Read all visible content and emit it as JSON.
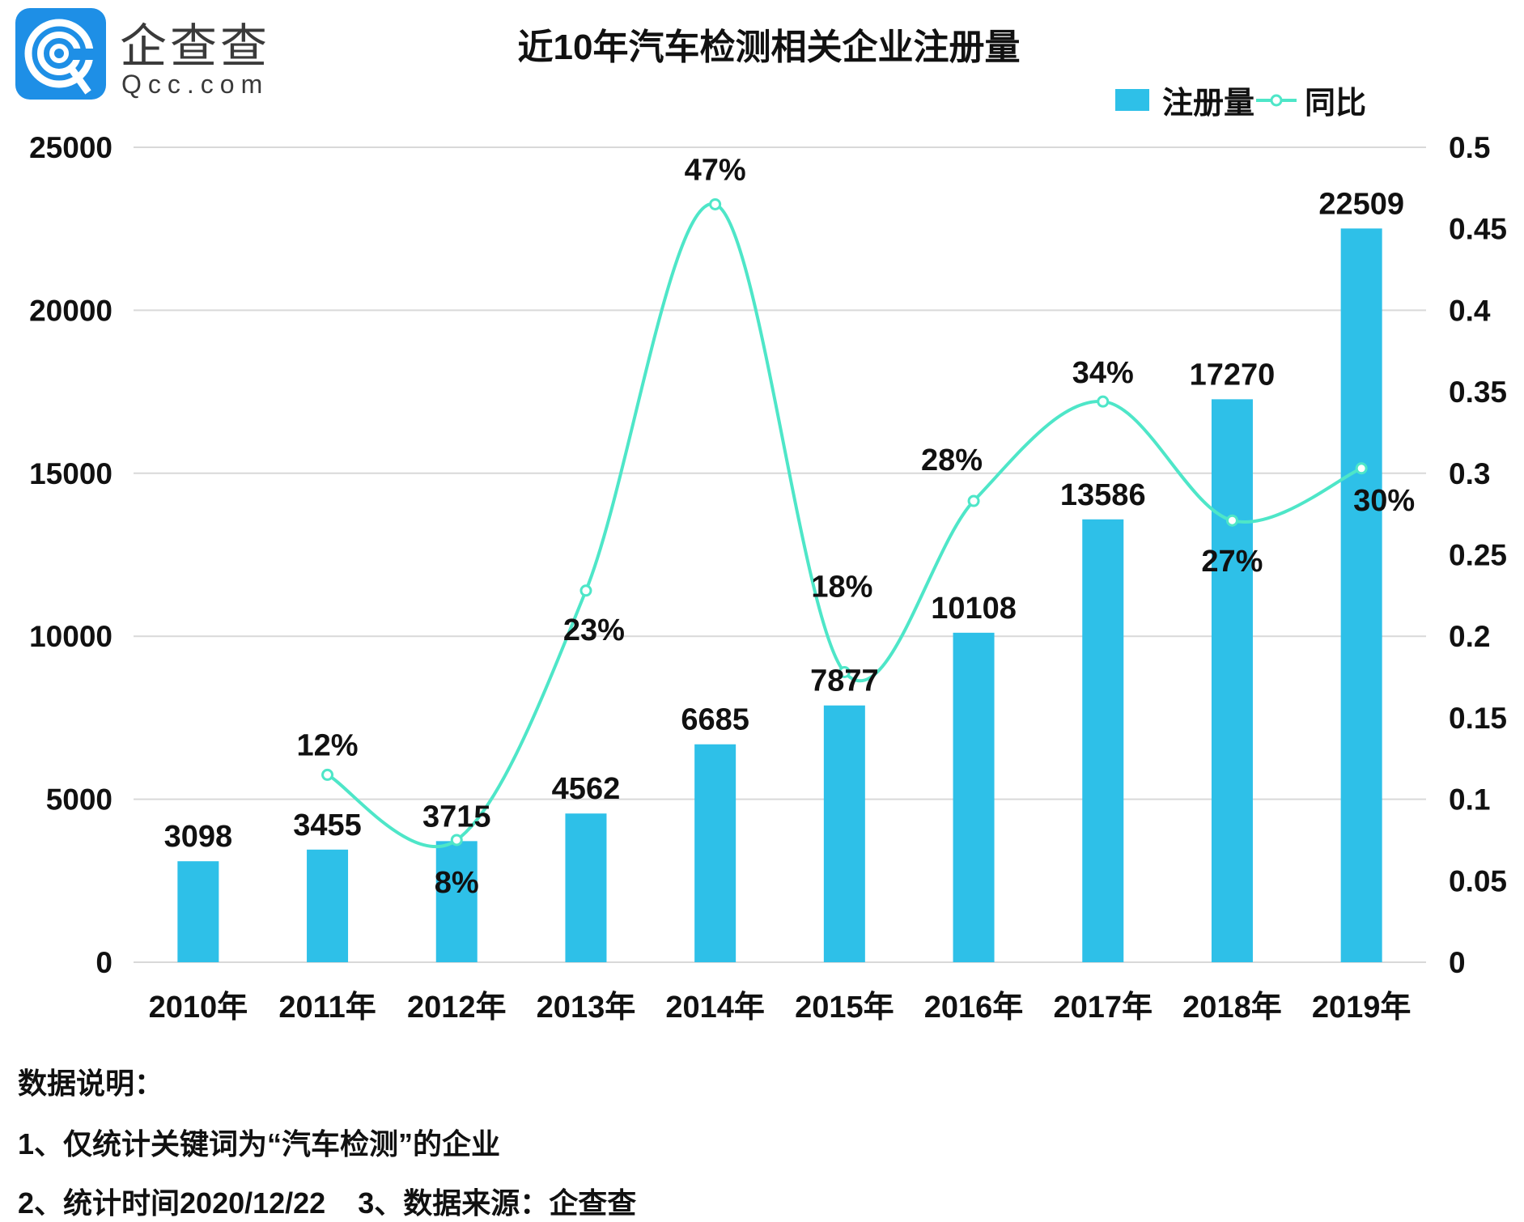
{
  "logo": {
    "name": "企查查",
    "url": "Qcc.com"
  },
  "chart_data": {
    "type": "bar+line",
    "title": "近10年汽车检测相关企业注册量",
    "categories": [
      "2010年",
      "2011年",
      "2012年",
      "2013年",
      "2014年",
      "2015年",
      "2016年",
      "2017年",
      "2018年",
      "2019年"
    ],
    "series": [
      {
        "name": "注册量",
        "type": "bar",
        "axis": "left",
        "color": "#2ec0e8",
        "values": [
          3098,
          3455,
          3715,
          4562,
          6685,
          7877,
          10108,
          13586,
          17270,
          22509
        ],
        "labels": [
          "3098",
          "3455",
          "3715",
          "4562",
          "6685",
          "7877",
          "10108",
          "13586",
          "17270",
          "22509"
        ]
      },
      {
        "name": "同比",
        "type": "line",
        "axis": "right",
        "color": "#4ee6c8",
        "smooth": true,
        "values": [
          null,
          0.115,
          0.075,
          0.228,
          0.465,
          0.178,
          0.283,
          0.344,
          0.271,
          0.303
        ],
        "labels": [
          null,
          "12%",
          "8%",
          "23%",
          "47%",
          "18%",
          "28%",
          "34%",
          "27%",
          "30%"
        ]
      }
    ],
    "y_left": {
      "lim": [
        0,
        25000
      ],
      "ticks": [
        "0",
        "5000",
        "10000",
        "15000",
        "20000",
        "25000"
      ]
    },
    "y_right": {
      "lim": [
        0,
        0.5
      ],
      "ticks": [
        "0",
        "0.05",
        "0.1",
        "0.15",
        "0.2",
        "0.25",
        "0.3",
        "0.35",
        "0.4",
        "0.45",
        "0.5"
      ]
    },
    "grid": true,
    "legend_position": "top-right"
  },
  "notes": {
    "heading": "数据说明：",
    "line1": "1、仅统计关键词为“汽车检测”的企业",
    "line2": "2、统计时间2020/12/22    3、数据来源：企查查"
  }
}
